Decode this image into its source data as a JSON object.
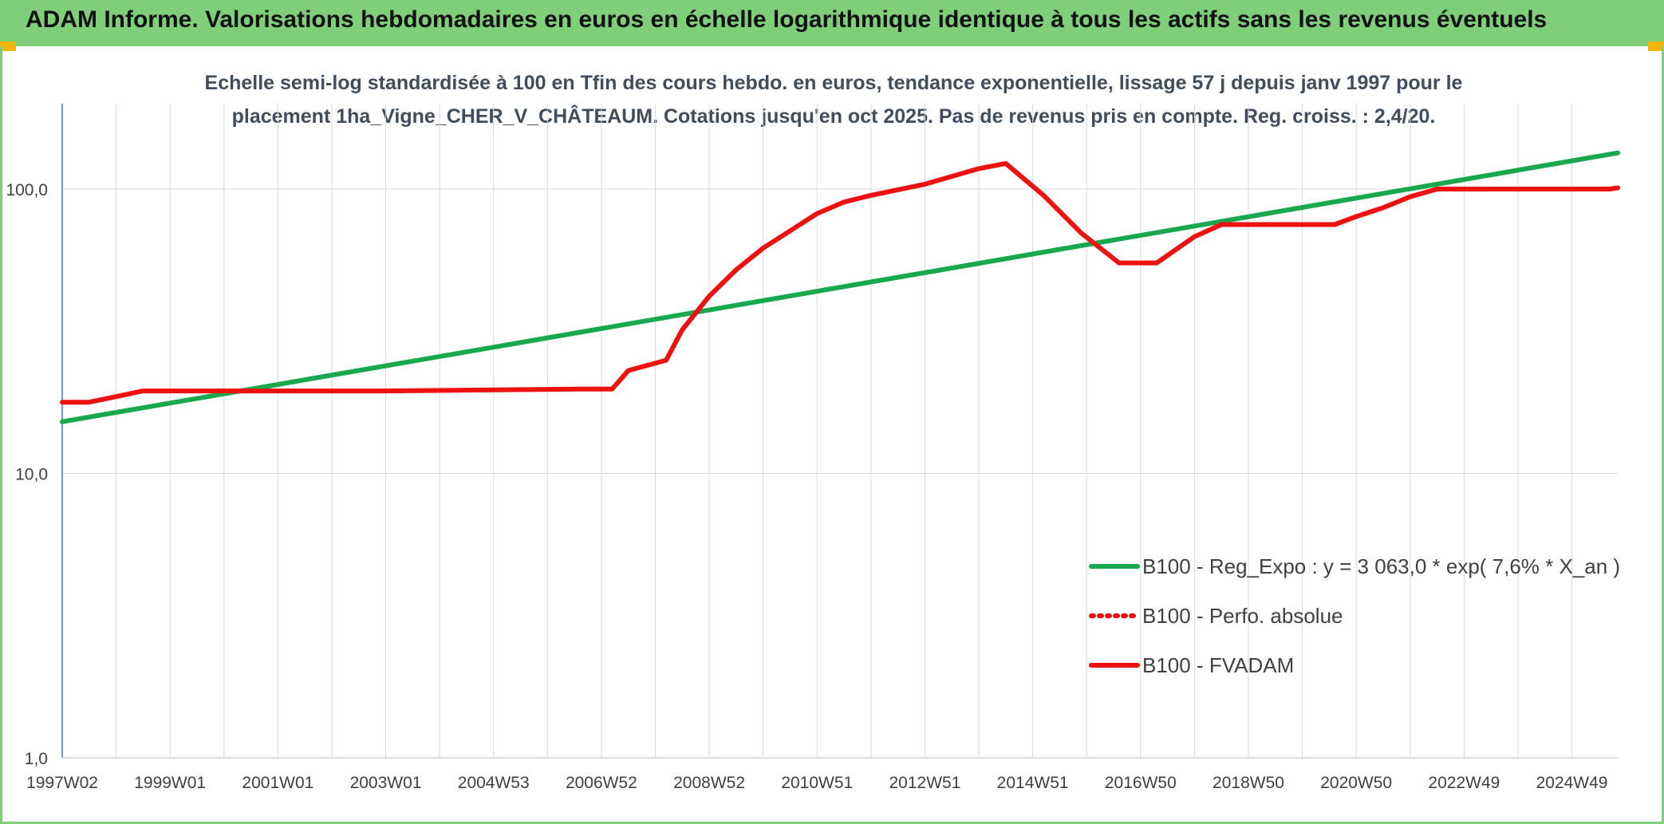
{
  "header": {
    "title": "ADAM Informe. Valorisations hebdomadaires en euros en échelle logarithmique identique à tous les actifs sans les revenus éventuels"
  },
  "colors": {
    "header_bg": "#7fcf7a",
    "corner_accent": "#f2b50f",
    "regression": "#1aa84e",
    "fvadam": "#ee1111",
    "axis": "#4472c4",
    "grid": "#d9d9d9"
  },
  "chart_data": {
    "type": "line",
    "title_line1": "Echelle semi-log standardisée à 100 en Tfin des cours hebdo. en euros, tendance exponentielle, lissage 57 j depuis janv 1997 pour le",
    "title_line2": "placement 1ha_Vigne_CHER_V_CHÂTEAUM. Cotations jusqu'en oct 2025. Pas de revenus pris en compte. Reg. croiss. : 2,4/20.",
    "y_scale": "log",
    "ylim": [
      1,
      200
    ],
    "xlim": [
      1997.0,
      2025.85
    ],
    "y_ticks": [
      {
        "value": 1,
        "label": "1,0"
      },
      {
        "value": 10,
        "label": "10,0"
      },
      {
        "value": 100,
        "label": "100,0"
      }
    ],
    "x_ticks": [
      {
        "value": 1997.0,
        "label": "1997W02"
      },
      {
        "value": 1999.0,
        "label": "1999W01"
      },
      {
        "value": 2001.0,
        "label": "2001W01"
      },
      {
        "value": 2003.0,
        "label": "2003W01"
      },
      {
        "value": 2005.0,
        "label": "2004W53"
      },
      {
        "value": 2007.0,
        "label": "2006W52"
      },
      {
        "value": 2009.0,
        "label": "2008W52"
      },
      {
        "value": 2011.0,
        "label": "2010W51"
      },
      {
        "value": 2013.0,
        "label": "2012W51"
      },
      {
        "value": 2015.0,
        "label": "2014W51"
      },
      {
        "value": 2017.0,
        "label": "2016W50"
      },
      {
        "value": 2019.0,
        "label": "2018W50"
      },
      {
        "value": 2021.0,
        "label": "2020W50"
      },
      {
        "value": 2023.0,
        "label": "2022W49"
      },
      {
        "value": 2025.0,
        "label": "2024W49"
      }
    ],
    "grid": true,
    "legend_position": "bottom-right",
    "series": [
      {
        "name": "B100 - Reg_Expo : y = 3 063,0 * exp( 7,6% *  X_an )",
        "color": "#1aa84e",
        "style": "solid",
        "x": [
          1997.0,
          2025.85
        ],
        "y": [
          15.2,
          134
        ]
      },
      {
        "name": "B100 - Perfo. absolue",
        "color": "#ee1111",
        "style": "dotted",
        "x": [],
        "y": []
      },
      {
        "name": "B100 - FVADAM",
        "color": "#ee1111",
        "style": "solid",
        "x": [
          1997.0,
          1997.5,
          1998.5,
          1999.5,
          2003.0,
          2006.6,
          2007.2,
          2007.5,
          2008.2,
          2008.5,
          2009.0,
          2009.5,
          2010.0,
          2011.0,
          2011.5,
          2012.0,
          2013.0,
          2014.0,
          2014.5,
          2015.2,
          2015.9,
          2016.6,
          2017.3,
          2018.0,
          2018.5,
          2019.0,
          2020.0,
          2020.6,
          2021.0,
          2021.5,
          2022.0,
          2022.5,
          2023.0,
          2024.0,
          2025.0,
          2025.7,
          2025.85
        ],
        "y": [
          17.8,
          17.8,
          19.5,
          19.5,
          19.5,
          19.8,
          19.8,
          23.0,
          25.0,
          32.0,
          42.0,
          52.0,
          62.0,
          82.0,
          90.0,
          95.0,
          104.0,
          118.0,
          123.0,
          95.0,
          70.0,
          55.0,
          55.0,
          68.0,
          75.0,
          75.0,
          75.0,
          75.0,
          80.0,
          86.0,
          94.0,
          100.0,
          100.0,
          100.0,
          100.0,
          100.0,
          101.0
        ]
      }
    ]
  }
}
